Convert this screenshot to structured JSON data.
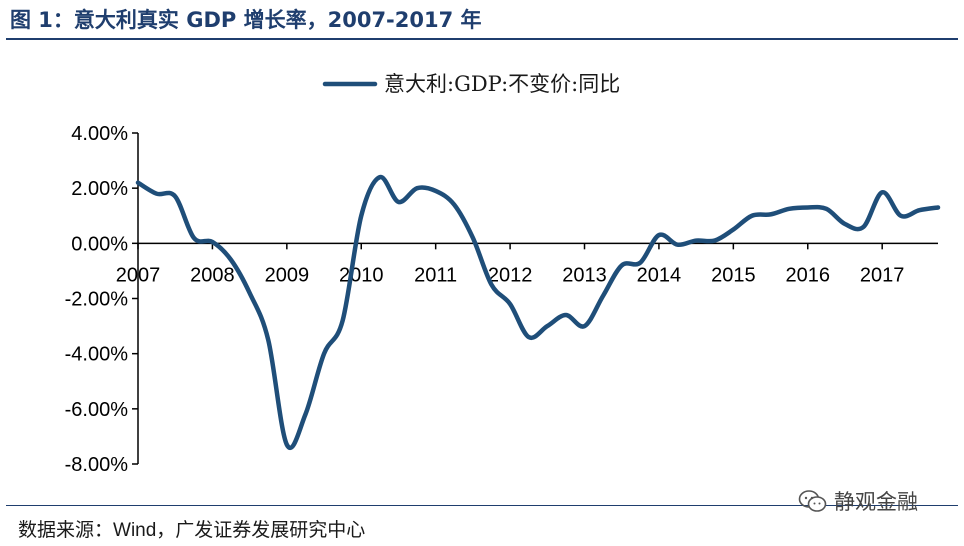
{
  "figure": {
    "title": "图 1：意大利真实 GDP 增长率，2007-2017 年",
    "source_label": "数据来源：",
    "source_text": "Wind，广发证券发展研究中心",
    "watermark_text": "静观金融",
    "watermark_icon": "wechat-icon"
  },
  "colors": {
    "title": "#1f3e6e",
    "series": "#1f4e79",
    "axis": "#000000"
  },
  "chart_data": {
    "type": "line",
    "title": "",
    "legend_position": "top-center",
    "grid": false,
    "y_unit": "%",
    "ylim": [
      -8,
      4
    ],
    "y_ticks": [
      4,
      2,
      0,
      -2,
      -4,
      -6,
      -8
    ],
    "y_tick_labels": [
      "4.00%",
      "2.00%",
      "0.00%",
      "-2.00%",
      "-4.00%",
      "-6.00%",
      "-8.00%"
    ],
    "x_ticks": [
      2007,
      2008,
      2009,
      2010,
      2011,
      2012,
      2013,
      2014,
      2015,
      2016,
      2017
    ],
    "x_tick_labels": [
      "2007",
      "2008",
      "2009",
      "2010",
      "2011",
      "2012",
      "2013",
      "2014",
      "2015",
      "2016",
      "2017"
    ],
    "xlim": [
      2007,
      2017.75
    ],
    "series": [
      {
        "name": "意大利:GDP:不变价:同比",
        "x": [
          2007.0,
          2007.25,
          2007.5,
          2007.75,
          2008.0,
          2008.25,
          2008.5,
          2008.75,
          2009.0,
          2009.25,
          2009.5,
          2009.75,
          2010.0,
          2010.25,
          2010.5,
          2010.75,
          2011.0,
          2011.25,
          2011.5,
          2011.75,
          2012.0,
          2012.25,
          2012.5,
          2012.75,
          2013.0,
          2013.25,
          2013.5,
          2013.75,
          2014.0,
          2014.25,
          2014.5,
          2014.75,
          2015.0,
          2015.25,
          2015.5,
          2015.75,
          2016.0,
          2016.25,
          2016.5,
          2016.75,
          2017.0,
          2017.25,
          2017.5,
          2017.75
        ],
        "values": [
          2.2,
          1.8,
          1.7,
          0.2,
          0.05,
          -0.6,
          -1.8,
          -3.5,
          -7.3,
          -6.2,
          -4.0,
          -2.8,
          1.0,
          2.4,
          1.5,
          2.0,
          1.9,
          1.4,
          0.2,
          -1.5,
          -2.2,
          -3.4,
          -3.0,
          -2.6,
          -3.0,
          -1.9,
          -0.8,
          -0.7,
          0.3,
          -0.05,
          0.1,
          0.1,
          0.5,
          1.0,
          1.05,
          1.25,
          1.3,
          1.25,
          0.7,
          0.6,
          1.85,
          1.0,
          1.2,
          1.3
        ]
      }
    ]
  }
}
